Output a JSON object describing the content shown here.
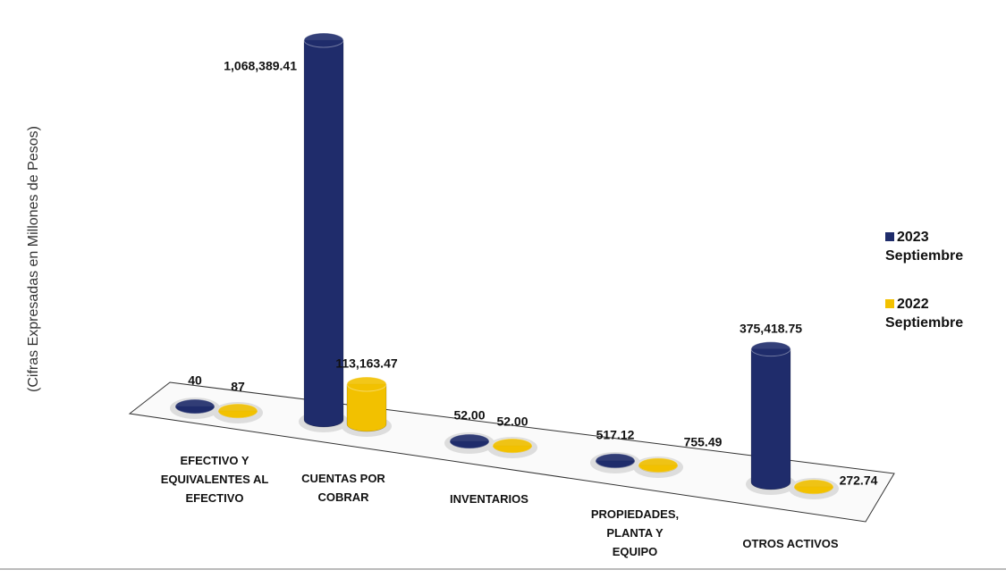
{
  "chart_data": {
    "type": "bar",
    "y_axis_label": "(Cifras Expresadas en Millones de Pesos)",
    "categories": [
      "EFECTIVO Y EQUIVALENTES AL EFECTIVO",
      "CUENTAS POR COBRAR",
      "INVENTARIOS",
      "PROPIEDADES, PLANTA Y EQUIPO",
      "OTROS ACTIVOS"
    ],
    "series": [
      {
        "name": "2023 Septiembre",
        "color": "#1f2c6b",
        "values": [
          40,
          1068389.41,
          52,
          517.12,
          375418.75
        ],
        "value_labels": [
          "40",
          "1,068,389.41",
          "52.00",
          "517.12",
          "375,418.75"
        ]
      },
      {
        "name": "2022 Septiembre",
        "color": "#f2c100",
        "values": [
          87,
          113163.47,
          52,
          755.49,
          272.74
        ],
        "value_labels": [
          "87",
          "113,163.47",
          "52.00",
          "755.49",
          "272.74"
        ]
      }
    ],
    "legend": "right"
  }
}
